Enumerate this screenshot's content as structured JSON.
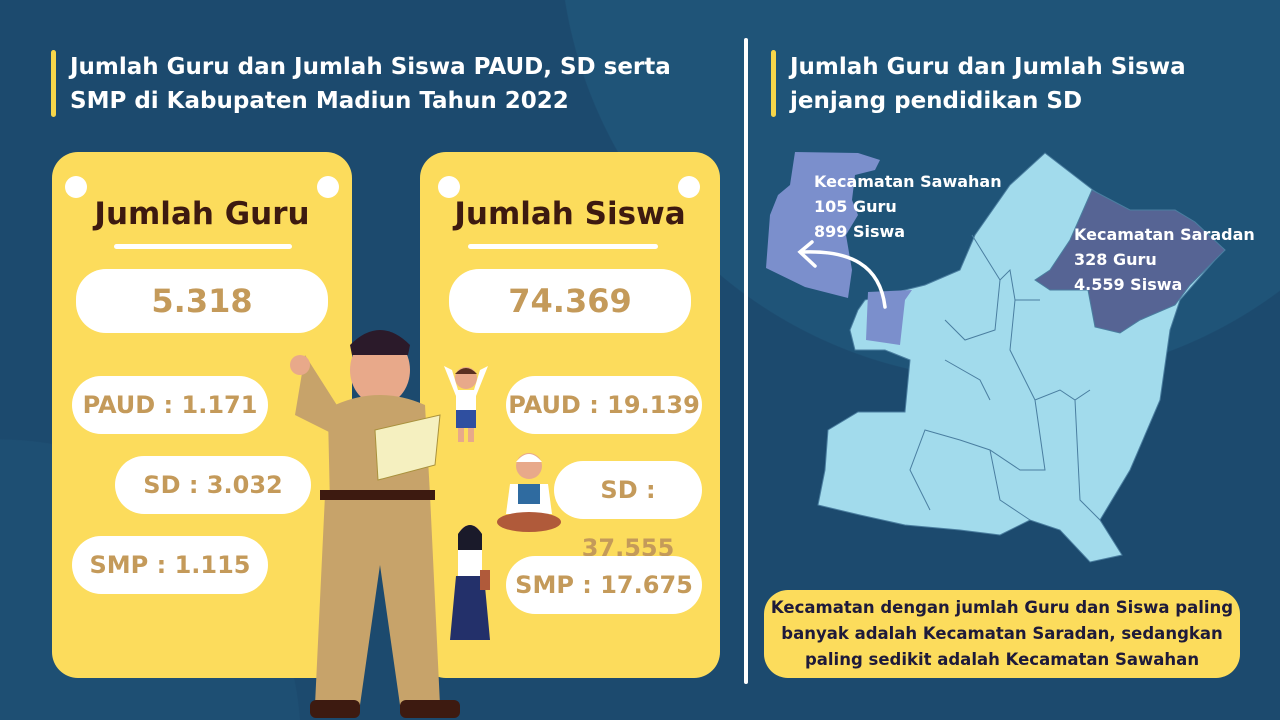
{
  "left": {
    "title_line1": "Jumlah Guru dan Jumlah Siswa PAUD, SD serta",
    "title_line2": "SMP di Kabupaten Madiun Tahun 2022",
    "guru": {
      "heading": "Jumlah Guru",
      "total": "5.318",
      "paud": "PAUD : 1.171",
      "sd": "SD : 3.032",
      "smp": "SMP : 1.115"
    },
    "siswa": {
      "heading": "Jumlah Siswa",
      "total": "74.369",
      "paud": "PAUD : 19.139",
      "sd": "SD : 37.555",
      "smp": "SMP : 17.675"
    }
  },
  "right": {
    "title_line1": "Jumlah Guru dan Jumlah Siswa",
    "title_line2": "jenjang pendidikan SD",
    "sawahan": {
      "name": "Kecamatan Sawahan",
      "guru": "105 Guru",
      "siswa": "899 Siswa",
      "color": "#7b8fcc"
    },
    "saradan": {
      "name": "Kecamatan Saradan",
      "guru": "328 Guru",
      "siswa": "4.559 Siswa",
      "color": "#566494"
    },
    "map_color": "#a2dbec",
    "note_line1": "Kecamatan dengan jumlah Guru dan Siswa paling",
    "note_line2": "banyak adalah Kecamatan Saradan, sedangkan",
    "note_line3": "paling sedikit adalah Kecamatan Sawahan"
  },
  "colors": {
    "background": "#1c4a6e",
    "accent": "#fcdc5c",
    "number": "#c49a5a"
  }
}
